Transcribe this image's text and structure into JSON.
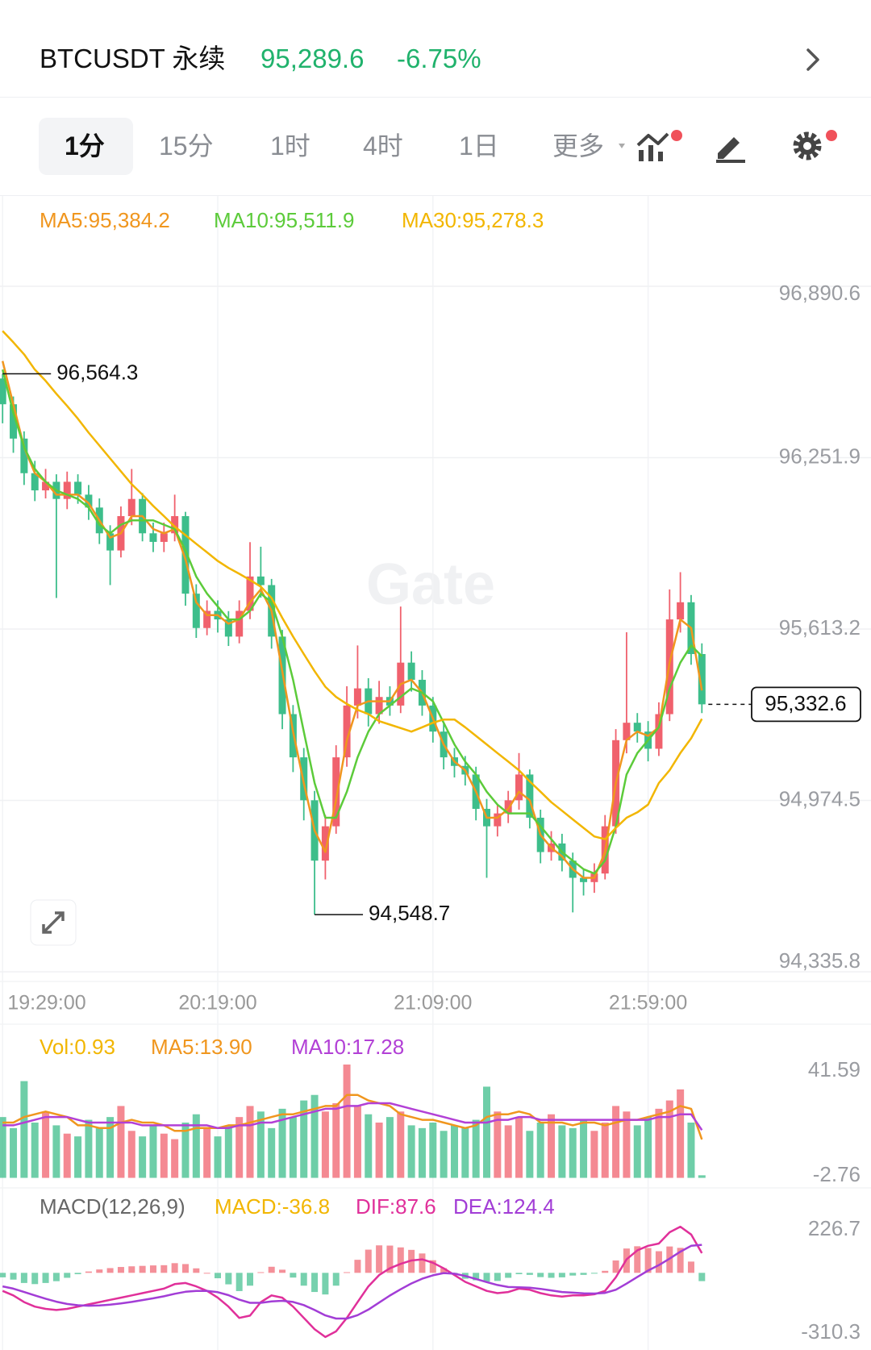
{
  "header": {
    "title": "BTCUSDT 永续",
    "price": "95,289.6",
    "change": "-6.75%"
  },
  "tabs": [
    "1分",
    "15分",
    "1时",
    "4时",
    "1日",
    "更多"
  ],
  "watermark": "Gate",
  "chart_data": [
    {
      "type": "candlestick",
      "categories": [
        "19:29:00",
        null,
        null,
        null,
        null,
        null,
        null,
        null,
        null,
        null,
        null,
        null,
        null,
        null,
        null,
        null,
        null,
        null,
        null,
        null,
        "20:19:00",
        null,
        null,
        null,
        null,
        null,
        null,
        null,
        null,
        null,
        null,
        null,
        null,
        null,
        null,
        null,
        null,
        null,
        null,
        null,
        "21:09:00",
        null,
        null,
        null,
        null,
        null,
        null,
        null,
        null,
        null,
        null,
        null,
        null,
        null,
        null,
        null,
        null,
        null,
        null,
        null,
        "21:59:00",
        null,
        null,
        null,
        null,
        null
      ],
      "open": [
        96547,
        96451,
        96323,
        96194,
        96130,
        96162,
        96098,
        96162,
        96114,
        96066,
        95970,
        95906,
        96034,
        96098,
        95970,
        95938,
        95970,
        96034,
        95745,
        95617,
        95681,
        95649,
        95585,
        95681,
        95809,
        95777,
        95585,
        95296,
        95135,
        94975,
        94750,
        94878,
        95135,
        95328,
        95392,
        95296,
        95360,
        95328,
        95488,
        95424,
        95328,
        95231,
        95135,
        95103,
        95071,
        94943,
        94878,
        94926,
        94975,
        95071,
        94910,
        94782,
        94814,
        94750,
        94686,
        94670,
        94702,
        94878,
        95199,
        95264,
        95231,
        95167,
        95296,
        95649,
        95713,
        95520
      ],
      "high": [
        96564.3,
        96480,
        96350,
        96240,
        96210,
        96190,
        96200,
        96190,
        96150,
        96100,
        96000,
        96070,
        96210,
        96120,
        96010,
        96010,
        96114,
        96050,
        95780,
        95720,
        95720,
        95680,
        95720,
        95937,
        95920,
        95800,
        95610,
        95330,
        95170,
        95010,
        94920,
        95180,
        95400,
        95552,
        95430,
        95420,
        95400,
        95697,
        95530,
        95460,
        95360,
        95260,
        95170,
        95140,
        95100,
        94980,
        94960,
        95010,
        95151,
        95090,
        94940,
        94860,
        94850,
        94780,
        94720,
        94740,
        94920,
        95240,
        95601,
        95300,
        95270,
        95340,
        95761,
        95825,
        95740,
        95560
      ],
      "low": [
        96380,
        96270,
        96150,
        96090,
        96100,
        95729,
        96060,
        96080,
        96020,
        95930,
        95777,
        95880,
        96000,
        95940,
        95900,
        95900,
        95940,
        95700,
        95580,
        95590,
        95600,
        95550,
        95560,
        95650,
        95730,
        95540,
        95240,
        95080,
        94900,
        94548.7,
        94680,
        94850,
        95100,
        95280,
        95250,
        95260,
        95290,
        95300,
        95380,
        95290,
        95190,
        95090,
        95060,
        95030,
        94900,
        94686,
        94840,
        94890,
        94940,
        94870,
        94740,
        94750,
        94710,
        94557,
        94620,
        94630,
        94680,
        94850,
        95150,
        95190,
        95120,
        95140,
        95270,
        95600,
        95480,
        95300
      ],
      "close": [
        96451,
        96323,
        96194,
        96130,
        96162,
        96098,
        96162,
        96114,
        96066,
        95970,
        95906,
        96034,
        96098,
        95970,
        95938,
        95970,
        96034,
        95745,
        95617,
        95681,
        95649,
        95585,
        95681,
        95809,
        95777,
        95585,
        95296,
        95135,
        94975,
        94750,
        94878,
        95135,
        95328,
        95392,
        95296,
        95360,
        95328,
        95488,
        95424,
        95328,
        95231,
        95135,
        95103,
        95071,
        94943,
        94878,
        94926,
        94975,
        95071,
        94910,
        94782,
        94814,
        94750,
        94686,
        94670,
        94702,
        94878,
        95199,
        95264,
        95231,
        95167,
        95296,
        95649,
        95713,
        95520,
        95332.6
      ],
      "up_color": "#F0616D",
      "down_color": "#3DBE8B",
      "series": [
        {
          "name": "MA5:95,384.2",
          "color": "#F0961E",
          "values": [
            96612,
            96451,
            96291,
            96194,
            96162,
            96114,
            96114,
            96114,
            96082,
            96018,
            95954,
            95970,
            96034,
            96034,
            95986,
            95970,
            95986,
            95873,
            95713,
            95665,
            95665,
            95633,
            95649,
            95713,
            95761,
            95681,
            95456,
            95231,
            95039,
            94862,
            94782,
            94975,
            95199,
            95328,
            95344,
            95344,
            95344,
            95408,
            95424,
            95376,
            95280,
            95183,
            95119,
            95087,
            95007,
            94910,
            94910,
            94943,
            95007,
            94975,
            94846,
            94798,
            94766,
            94718,
            94686,
            94686,
            94782,
            95039,
            95199,
            95231,
            95215,
            95247,
            95488,
            95649,
            95617,
            95384.2
          ]
        },
        {
          "name": "MA10:95,511.9",
          "color": "#5CCB3A",
          "values": [
            96580,
            96419,
            96291,
            96210,
            96162,
            96130,
            96114,
            96098,
            96066,
            96002,
            95970,
            96002,
            96018,
            96018,
            96018,
            96002,
            95986,
            95906,
            95809,
            95745,
            95697,
            95649,
            95649,
            95681,
            95745,
            95713,
            95585,
            95424,
            95231,
            95039,
            94910,
            94910,
            95007,
            95135,
            95231,
            95296,
            95328,
            95360,
            95392,
            95376,
            95344,
            95264,
            95183,
            95119,
            95071,
            95007,
            94959,
            94926,
            94926,
            94926,
            94878,
            94830,
            94782,
            94750,
            94718,
            94702,
            94750,
            94878,
            95071,
            95151,
            95199,
            95247,
            95392,
            95488,
            95552,
            95511.9
          ]
        },
        {
          "name": "MA30:95,278.3",
          "color": "#F2B600",
          "values": [
            96724,
            96682,
            96637,
            96580,
            96538,
            96490,
            96445,
            96397,
            96345,
            96297,
            96249,
            96201,
            96153,
            96114,
            96072,
            96034,
            95995,
            95963,
            95931,
            95899,
            95867,
            95841,
            95819,
            95796,
            95771,
            95729,
            95655,
            95585,
            95520,
            95456,
            95398,
            95360,
            95334,
            95312,
            95296,
            95270,
            95257,
            95244,
            95231,
            95247,
            95264,
            95276,
            95276,
            95247,
            95215,
            95183,
            95151,
            95119,
            95087,
            95045,
            95007,
            94968,
            94936,
            94904,
            94872,
            94840,
            94830,
            94872,
            94910,
            94930,
            94959,
            95039,
            95087,
            95151,
            95206,
            95278.3
          ]
        }
      ],
      "ylim": [
        94335.8,
        96890.6
      ],
      "yticks": [
        {
          "value": 94335.8,
          "label": "94,335.8"
        },
        {
          "value": 94974.5,
          "label": "94,974.5"
        },
        {
          "value": 95613.2,
          "label": "95,613.2"
        },
        {
          "value": 96251.9,
          "label": "96,251.9"
        },
        {
          "value": 96890.6,
          "label": "96,890.6"
        }
      ],
      "grid": true,
      "max_label": {
        "value": 96564.3,
        "label": "96,564.3"
      },
      "min_label": {
        "value": 94548.7,
        "label": "94,548.7"
      },
      "last_price": {
        "value": 95332.6,
        "label": "95,332.6"
      }
    },
    {
      "type": "bar",
      "label": "Vol:0.93",
      "label_color": "#F2B600",
      "values": [
        22,
        18,
        35,
        20,
        24,
        19,
        16,
        15,
        21,
        18,
        22,
        26,
        17,
        15,
        19,
        16,
        14,
        20,
        23,
        18,
        15,
        19,
        22,
        26,
        24,
        18,
        25,
        22,
        28,
        30,
        24,
        27,
        41,
        26,
        23,
        20,
        22,
        24,
        19,
        18,
        20,
        17,
        19,
        18,
        21,
        33,
        24,
        19,
        22,
        17,
        20,
        23,
        19,
        18,
        21,
        17,
        20,
        26,
        24,
        19,
        22,
        25,
        28,
        32,
        20,
        0.93
      ],
      "series": [
        {
          "name": "MA5:13.90",
          "color": "#F0961E",
          "values": [
            20,
            20,
            22,
            23,
            24,
            23,
            22,
            19,
            19,
            18,
            18,
            20,
            21,
            20,
            20,
            19,
            17,
            17,
            18,
            18,
            18,
            19,
            19,
            20,
            21,
            22,
            23,
            23,
            24,
            25,
            26,
            26,
            30,
            30,
            28,
            27,
            26,
            23,
            22,
            21,
            21,
            20,
            19,
            18,
            19,
            22,
            23,
            23,
            24,
            23,
            20,
            20,
            20,
            19,
            20,
            20,
            19,
            20,
            21,
            21,
            22,
            23,
            24,
            26,
            25,
            13.9
          ]
        },
        {
          "name": "MA10:17.28",
          "color": "#B240D6",
          "values": [
            19,
            19,
            20,
            21,
            22,
            22,
            22,
            21,
            20,
            20,
            20,
            20,
            20,
            19,
            19,
            19,
            19,
            19,
            19,
            19,
            18,
            18,
            19,
            19,
            20,
            20,
            21,
            22,
            23,
            24,
            25,
            25,
            26,
            26,
            27,
            27,
            27,
            26,
            25,
            24,
            23,
            22,
            21,
            20,
            20,
            20,
            21,
            21,
            22,
            22,
            21,
            21,
            21,
            21,
            21,
            21,
            21,
            21,
            21,
            21,
            21,
            22,
            22,
            23,
            23,
            17.28
          ]
        }
      ],
      "ylim": [
        -2.76,
        41.59
      ],
      "yticks": [
        -2.76,
        41.59
      ]
    },
    {
      "type": "macd",
      "title": "MACD(12,26,9)",
      "label": "MACD:-36.8",
      "label_color": "#F2B600",
      "values": [
        -20,
        -30,
        -45,
        -50,
        -45,
        -37,
        -22,
        -6,
        6,
        15,
        21,
        26,
        29,
        31,
        33,
        34,
        43,
        39,
        20,
        0,
        -24,
        -51,
        -81,
        -57,
        3,
        27,
        14,
        -21,
        -57,
        -85,
        -96,
        -57,
        3,
        58,
        103,
        122,
        121,
        113,
        102,
        86,
        56,
        21,
        -6,
        -26,
        -33,
        -39,
        -36,
        -22,
        -6,
        -9,
        -19,
        -22,
        -20,
        -12,
        -9,
        -3,
        9,
        55,
        108,
        118,
        110,
        96,
        117,
        111,
        50,
        -36.8
      ],
      "series": [
        {
          "name": "DIF:87.6",
          "color": "#E0309A",
          "values": [
            -80,
            -100,
            -130,
            -150,
            -160,
            -165,
            -160,
            -150,
            -140,
            -130,
            -120,
            -110,
            -100,
            -90,
            -80,
            -70,
            -50,
            -45,
            -60,
            -80,
            -110,
            -150,
            -200,
            -190,
            -130,
            -100,
            -110,
            -150,
            -200,
            -250,
            -285,
            -260,
            -200,
            -130,
            -60,
            -10,
            20,
            40,
            55,
            60,
            45,
            20,
            -10,
            -40,
            -60,
            -80,
            -90,
            -85,
            -70,
            -75,
            -90,
            -100,
            -105,
            -100,
            -100,
            -95,
            -80,
            -20,
            60,
            100,
            120,
            130,
            180,
            205,
            170,
            87.6
          ]
        },
        {
          "name": "DEA:124.4",
          "color": "#A23DD6",
          "values": [
            -60,
            -70,
            -85,
            -100,
            -115,
            -128,
            -138,
            -144,
            -146,
            -145,
            -141,
            -136,
            -129,
            -121,
            -113,
            -104,
            -93,
            -84,
            -80,
            -80,
            -86,
            -99,
            -119,
            -133,
            -133,
            -127,
            -124,
            -129,
            -143,
            -165,
            -189,
            -203,
            -203,
            -188,
            -163,
            -132,
            -101,
            -73,
            -47,
            -26,
            -11,
            -1,
            -4,
            -14,
            -27,
            -41,
            -54,
            -63,
            -64,
            -66,
            -71,
            -78,
            -85,
            -88,
            -91,
            -92,
            -89,
            -75,
            -48,
            -18,
            10,
            34,
            63,
            94,
            120,
            124.4
          ]
        }
      ],
      "ylim": [
        -310.3,
        226.7
      ],
      "yticks": [
        -310.3,
        226.7
      ]
    }
  ]
}
